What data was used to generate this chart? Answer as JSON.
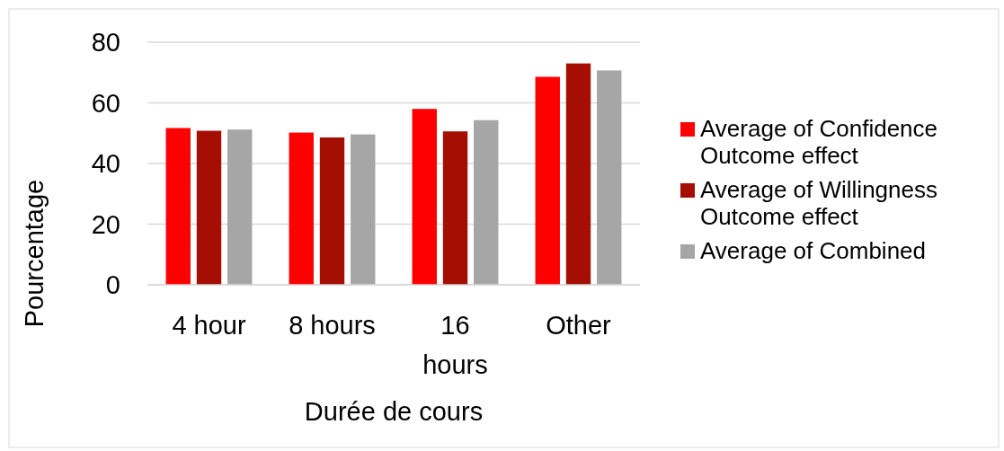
{
  "chart_data": {
    "type": "bar",
    "xlabel": "Durée de cours",
    "ylabel": "Pourcentage",
    "categories": [
      "4 hour",
      "8 hours",
      "16 hours",
      "Other"
    ],
    "series": [
      {
        "name": "Average of Confidence Outcome effect",
        "color": "#ff0000",
        "values": [
          51.7,
          50.2,
          58.0,
          68.6
        ]
      },
      {
        "name": "Average of Willingness Outcome effect",
        "color": "#a50f03",
        "values": [
          50.8,
          48.6,
          50.6,
          73.0
        ]
      },
      {
        "name": "Average of Combined",
        "color": "#a6a6a6",
        "values": [
          51.2,
          49.6,
          54.3,
          70.7
        ]
      }
    ],
    "ylim": [
      0,
      80
    ],
    "yticks": [
      0,
      20,
      40,
      60,
      80
    ],
    "grid": "y",
    "legend": "right"
  }
}
